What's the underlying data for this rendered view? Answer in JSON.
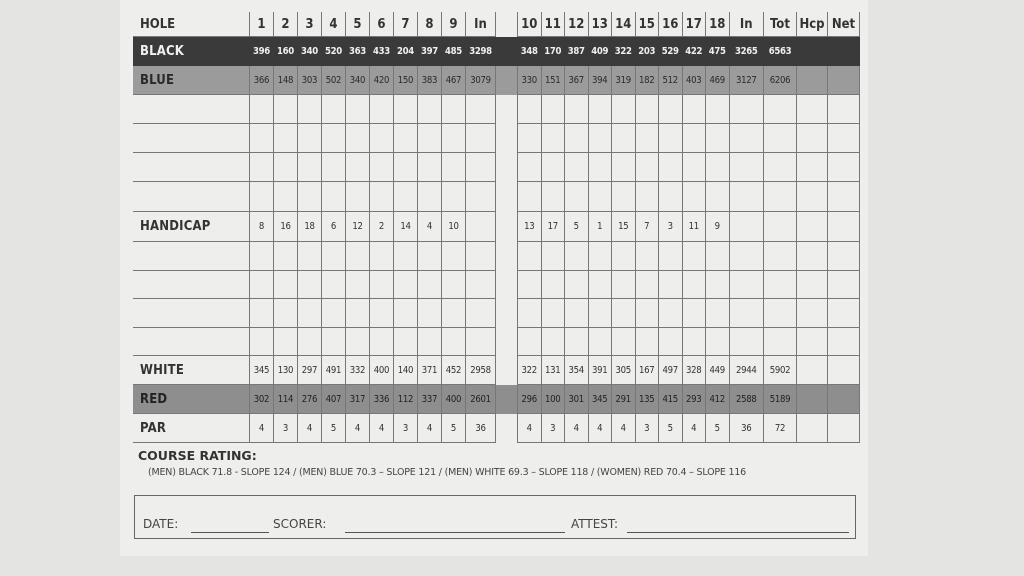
{
  "header": {
    "label": "HOLE",
    "front": [
      "1",
      "2",
      "3",
      "4",
      "5",
      "6",
      "7",
      "8",
      "9"
    ],
    "front_total": "In",
    "back": [
      "10",
      "11",
      "12",
      "13",
      "14",
      "15",
      "16",
      "17",
      "18"
    ],
    "back_total": "In",
    "total": "Tot",
    "hcp": "Hcp",
    "net": "Net"
  },
  "rows": {
    "black": {
      "label": "BLACK",
      "front": [
        "396",
        "160",
        "340",
        "520",
        "363",
        "433",
        "204",
        "397",
        "485"
      ],
      "front_total": "3298",
      "back": [
        "348",
        "170",
        "387",
        "409",
        "322",
        "203",
        "529",
        "422",
        "475"
      ],
      "back_total": "3265",
      "total": "6563"
    },
    "blue": {
      "label": "BLUE",
      "front": [
        "366",
        "148",
        "303",
        "502",
        "340",
        "420",
        "150",
        "383",
        "467"
      ],
      "front_total": "3079",
      "back": [
        "330",
        "151",
        "367",
        "394",
        "319",
        "182",
        "512",
        "403",
        "469"
      ],
      "back_total": "3127",
      "total": "6206"
    },
    "handicap": {
      "label": "HANDICAP",
      "front": [
        "8",
        "16",
        "18",
        "6",
        "12",
        "2",
        "14",
        "4",
        "10"
      ],
      "front_total": "",
      "back": [
        "13",
        "17",
        "5",
        "1",
        "15",
        "7",
        "3",
        "11",
        "9"
      ],
      "back_total": "",
      "total": ""
    },
    "white": {
      "label": "WHITE",
      "front": [
        "345",
        "130",
        "297",
        "491",
        "332",
        "400",
        "140",
        "371",
        "452"
      ],
      "front_total": "2958",
      "back": [
        "322",
        "131",
        "354",
        "391",
        "305",
        "167",
        "497",
        "328",
        "449"
      ],
      "back_total": "2944",
      "total": "5902"
    },
    "red": {
      "label": "RED",
      "front": [
        "302",
        "114",
        "276",
        "407",
        "317",
        "336",
        "112",
        "337",
        "400"
      ],
      "front_total": "2601",
      "back": [
        "296",
        "100",
        "301",
        "345",
        "291",
        "135",
        "415",
        "293",
        "412"
      ],
      "back_total": "2588",
      "total": "5189"
    },
    "par": {
      "label": "PAR",
      "front": [
        "4",
        "3",
        "4",
        "5",
        "4",
        "4",
        "3",
        "4",
        "5"
      ],
      "front_total": "36",
      "back": [
        "4",
        "3",
        "4",
        "4",
        "4",
        "3",
        "5",
        "4",
        "5"
      ],
      "back_total": "36",
      "total": "72"
    }
  },
  "course_rating": {
    "title": "COURSE RATING:",
    "text": "(MEN) BLACK 71.8 - SLOPE 124 / (MEN) BLUE 70.3 – SLOPE 121 / (MEN) WHITE 69.3 – SLOPE 118 / (WOMEN) RED 70.4 – SLOPE 116"
  },
  "signature": {
    "date_label": "DATE:",
    "scorer_label": "SCORER:",
    "attest_label": "ATTEST:"
  },
  "colors": {
    "black_tee": "#3a3a3a",
    "blue_tee": "#9b9b9b",
    "red_tee": "#8e8e8e",
    "card": "#eeeeec"
  }
}
